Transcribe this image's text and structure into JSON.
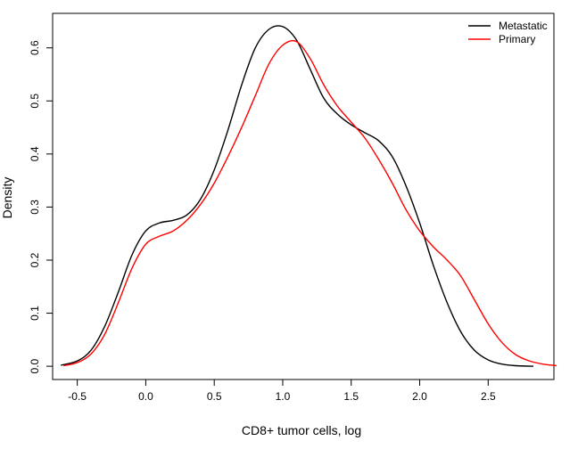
{
  "chart_data": {
    "type": "line",
    "title": "",
    "xlabel": "CD8+ tumor cells, log",
    "ylabel": "Density",
    "xlim": [
      -0.68,
      2.98
    ],
    "ylim": [
      -0.025,
      0.665
    ],
    "x_ticks": [
      -0.5,
      0.0,
      0.5,
      1.0,
      1.5,
      2.0,
      2.5
    ],
    "x_tick_labels": [
      "-0.5",
      "0.0",
      "0.5",
      "1.0",
      "1.5",
      "2.0",
      "2.5"
    ],
    "y_ticks": [
      0.0,
      0.1,
      0.2,
      0.3,
      0.4,
      0.5,
      0.6
    ],
    "y_tick_labels": [
      "0.0",
      "0.1",
      "0.2",
      "0.3",
      "0.4",
      "0.5",
      "0.6"
    ],
    "grid": false,
    "legend_position": "top-right",
    "series": [
      {
        "name": "Metastatic",
        "color": "#000000",
        "x": [
          -0.62,
          -0.5,
          -0.4,
          -0.3,
          -0.2,
          -0.1,
          0.0,
          0.1,
          0.2,
          0.3,
          0.4,
          0.5,
          0.6,
          0.7,
          0.8,
          0.9,
          1.0,
          1.1,
          1.2,
          1.3,
          1.4,
          1.5,
          1.6,
          1.7,
          1.8,
          1.9,
          2.0,
          2.1,
          2.2,
          2.3,
          2.4,
          2.5,
          2.6,
          2.7,
          2.83
        ],
        "y": [
          0.002,
          0.01,
          0.03,
          0.075,
          0.14,
          0.21,
          0.255,
          0.27,
          0.275,
          0.285,
          0.315,
          0.37,
          0.445,
          0.53,
          0.6,
          0.635,
          0.64,
          0.615,
          0.56,
          0.505,
          0.475,
          0.455,
          0.44,
          0.425,
          0.395,
          0.34,
          0.27,
          0.19,
          0.12,
          0.065,
          0.03,
          0.012,
          0.004,
          0.001,
          0.0
        ]
      },
      {
        "name": "Primary",
        "color": "#ff0000",
        "x": [
          -0.6,
          -0.5,
          -0.4,
          -0.3,
          -0.2,
          -0.1,
          0.0,
          0.1,
          0.2,
          0.3,
          0.4,
          0.5,
          0.6,
          0.7,
          0.8,
          0.9,
          1.0,
          1.1,
          1.2,
          1.3,
          1.4,
          1.5,
          1.6,
          1.7,
          1.8,
          1.9,
          2.0,
          2.1,
          2.2,
          2.3,
          2.4,
          2.5,
          2.6,
          2.7,
          2.8,
          2.9,
          3.0
        ],
        "y": [
          0.001,
          0.007,
          0.023,
          0.06,
          0.12,
          0.185,
          0.23,
          0.245,
          0.255,
          0.275,
          0.305,
          0.345,
          0.395,
          0.45,
          0.51,
          0.57,
          0.605,
          0.612,
          0.58,
          0.53,
          0.49,
          0.46,
          0.43,
          0.39,
          0.345,
          0.295,
          0.255,
          0.225,
          0.2,
          0.17,
          0.125,
          0.08,
          0.045,
          0.022,
          0.01,
          0.004,
          0.001
        ]
      }
    ]
  }
}
